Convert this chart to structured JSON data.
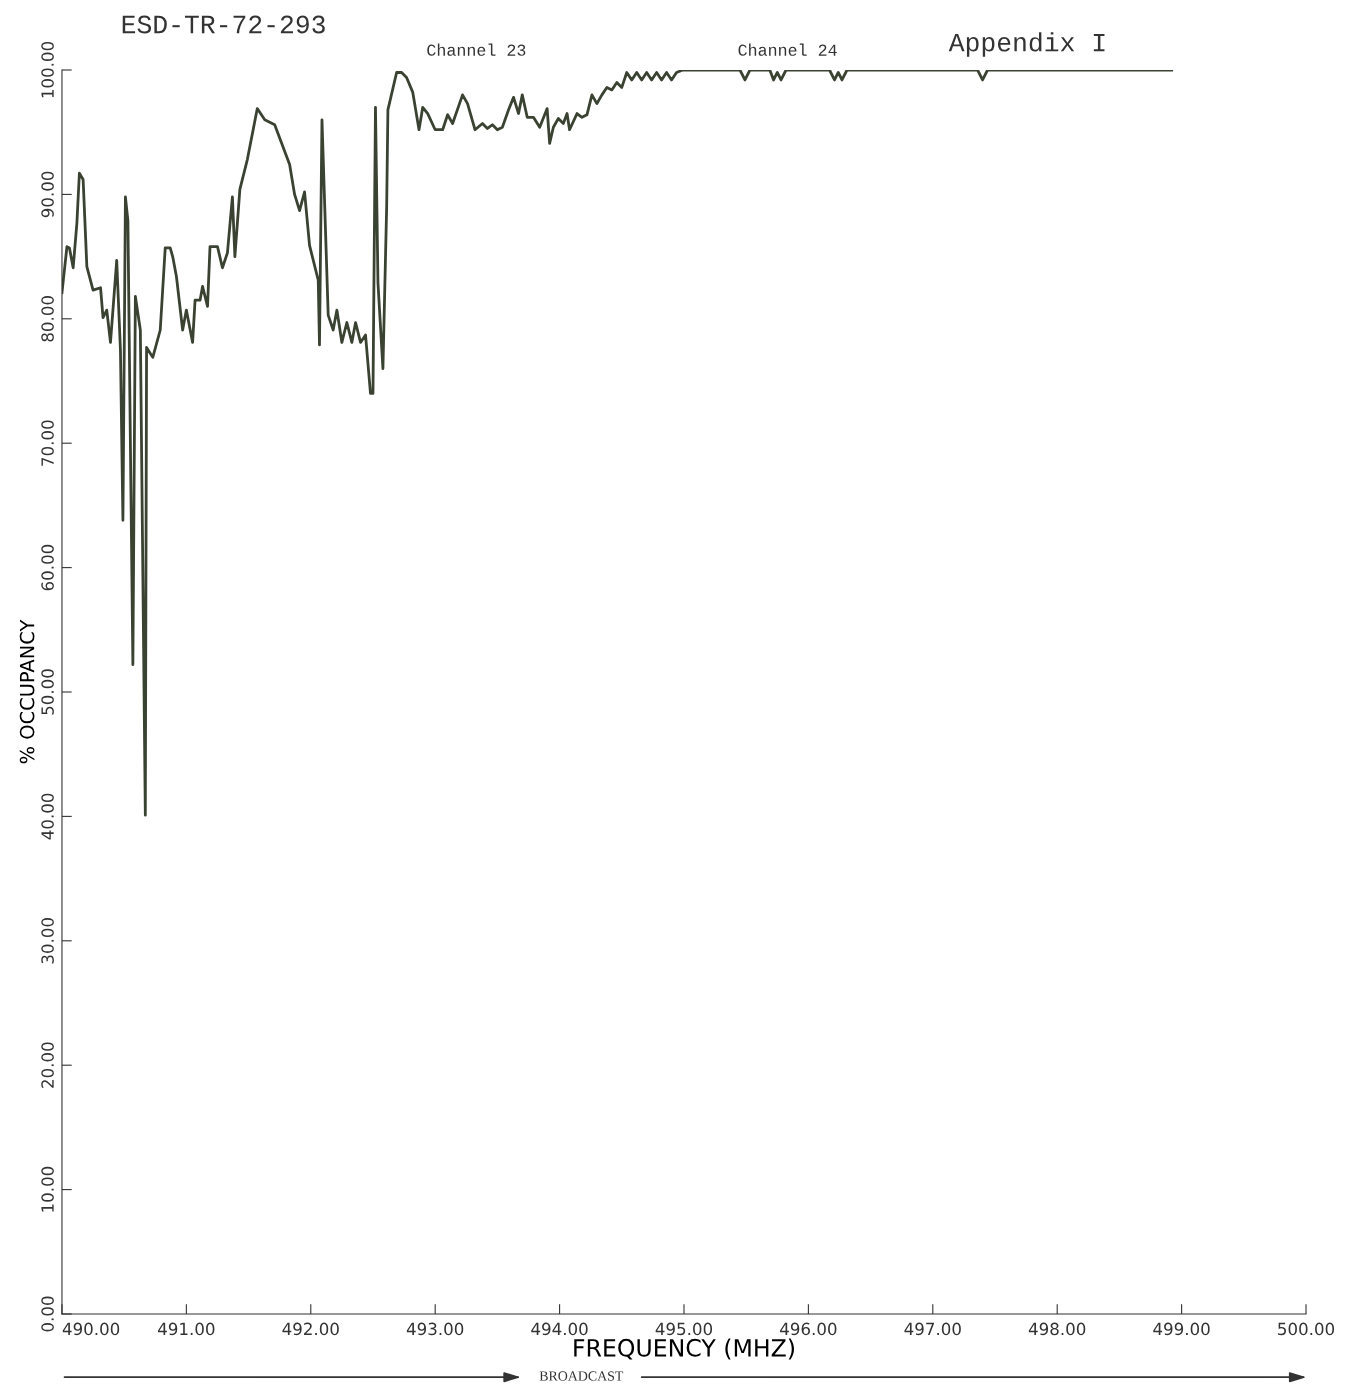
{
  "chart_data": {
    "type": "line",
    "xlabel": "FREQUENCY (MHZ)",
    "ylabel": "% OCCUPANCY",
    "annotations": [
      "ESD-TR-72-293",
      "Appendix I",
      "Channel 23",
      "Channel 24",
      "BROADCAST"
    ],
    "xlim": [
      490,
      500
    ],
    "ylim": [
      0,
      100
    ],
    "xticks": [
      {
        "value": 490,
        "label": "490.00"
      },
      {
        "value": 491,
        "label": "491.00"
      },
      {
        "value": 492,
        "label": "492.00"
      },
      {
        "value": 493,
        "label": "493.00"
      },
      {
        "value": 494,
        "label": "494.00"
      },
      {
        "value": 495,
        "label": "495.00"
      },
      {
        "value": 496,
        "label": "496.00"
      },
      {
        "value": 497,
        "label": "497.00"
      },
      {
        "value": 498,
        "label": "498.00"
      },
      {
        "value": 499,
        "label": "499.00"
      },
      {
        "value": 500,
        "label": "500.00"
      }
    ],
    "yticks": [
      {
        "value": 0,
        "label": "0.00"
      },
      {
        "value": 10,
        "label": "10.00"
      },
      {
        "value": 20,
        "label": "20.00"
      },
      {
        "value": 30,
        "label": "30.00"
      },
      {
        "value": 40,
        "label": "40.00"
      },
      {
        "value": 50,
        "label": "50.00"
      },
      {
        "value": 60,
        "label": "60.00"
      },
      {
        "value": 70,
        "label": "70.00"
      },
      {
        "value": 80,
        "label": "80.00"
      },
      {
        "value": 90,
        "label": "90.00"
      },
      {
        "value": 100,
        "label": "100.00"
      }
    ],
    "grid": false,
    "legend": false,
    "marker": "none",
    "line_style": "solid",
    "series": [
      {
        "color": "#3a4232",
        "x": [
          490.0,
          490.04,
          490.06,
          490.09,
          490.12,
          490.14,
          490.17,
          490.2,
          490.25,
          490.31,
          490.33,
          490.36,
          490.39,
          490.44,
          490.47,
          490.49,
          490.51,
          490.53,
          490.57,
          490.59,
          490.63,
          490.67,
          490.68,
          490.73,
          490.79,
          490.83,
          490.87,
          490.89,
          490.92,
          490.97,
          491.0,
          491.05,
          491.07,
          491.11,
          491.13,
          491.17,
          491.19,
          491.25,
          491.29,
          491.33,
          491.37,
          491.39,
          491.43,
          491.49,
          491.57,
          491.63,
          491.71,
          491.83,
          491.87,
          491.91,
          491.95,
          491.99,
          492.06,
          492.07,
          492.09,
          492.14,
          492.18,
          492.21,
          492.25,
          492.29,
          492.33,
          492.36,
          492.4,
          492.44,
          492.48,
          492.5,
          492.52,
          492.54,
          492.58,
          492.61,
          492.62,
          492.69,
          492.73,
          492.77,
          492.82,
          492.87,
          492.9,
          492.94,
          493.0,
          493.06,
          493.1,
          493.14,
          493.22,
          493.26,
          493.32,
          493.38,
          493.42,
          493.46,
          493.5,
          493.54,
          493.59,
          493.63,
          493.67,
          493.7,
          493.74,
          493.79,
          493.84,
          493.9,
          493.92,
          493.95,
          493.99,
          494.03,
          494.06,
          494.08,
          494.14,
          494.18,
          494.22,
          494.26,
          494.3,
          494.34,
          494.38,
          494.42,
          494.46,
          494.5,
          494.54,
          494.58,
          494.62,
          494.66,
          494.7,
          494.74,
          494.78,
          494.82,
          494.86,
          494.9,
          494.94,
          494.99,
          495.45,
          495.49,
          495.53,
          495.69,
          495.72,
          495.75,
          495.78,
          495.82,
          496.17,
          496.21,
          496.24,
          496.27,
          496.31,
          497.36,
          497.4,
          497.44,
          498.92
        ],
        "values": [
          82.1,
          85.8,
          85.7,
          84.1,
          87.7,
          91.7,
          91.2,
          84.2,
          82.3,
          82.5,
          80.1,
          80.7,
          78.1,
          84.7,
          77.5,
          63.8,
          89.8,
          87.9,
          52.2,
          81.8,
          79.1,
          40.1,
          77.7,
          76.9,
          79.1,
          85.7,
          85.7,
          85.0,
          83.4,
          79.1,
          80.7,
          78.1,
          81.5,
          81.5,
          82.6,
          81.0,
          85.8,
          85.8,
          84.1,
          85.3,
          89.8,
          85.0,
          90.4,
          92.8,
          96.9,
          96.0,
          95.6,
          92.4,
          90.0,
          88.7,
          90.2,
          85.9,
          83.1,
          77.9,
          96.0,
          80.3,
          79.1,
          80.7,
          78.1,
          79.7,
          78.1,
          79.7,
          78.1,
          78.7,
          74.0,
          74.0,
          97.0,
          82.9,
          76.0,
          89.0,
          96.8,
          99.8,
          99.8,
          99.4,
          98.2,
          95.2,
          97.0,
          96.5,
          95.2,
          95.2,
          96.4,
          95.7,
          98.0,
          97.3,
          95.2,
          95.7,
          95.3,
          95.6,
          95.2,
          95.4,
          96.8,
          97.8,
          96.5,
          98.0,
          96.2,
          96.2,
          95.4,
          96.9,
          94.1,
          95.4,
          96.1,
          95.7,
          96.5,
          95.2,
          96.5,
          96.2,
          96.4,
          98.0,
          97.3,
          98.0,
          98.6,
          98.4,
          99.0,
          98.6,
          99.8,
          99.2,
          99.8,
          99.2,
          99.8,
          99.2,
          99.8,
          99.2,
          99.8,
          99.2,
          99.8,
          100.0,
          100.0,
          99.2,
          100.0,
          100.0,
          99.2,
          99.8,
          99.2,
          100.0,
          100.0,
          99.2,
          99.8,
          99.2,
          100.0,
          100.0,
          99.2,
          100.0,
          100.0
        ]
      }
    ]
  }
}
